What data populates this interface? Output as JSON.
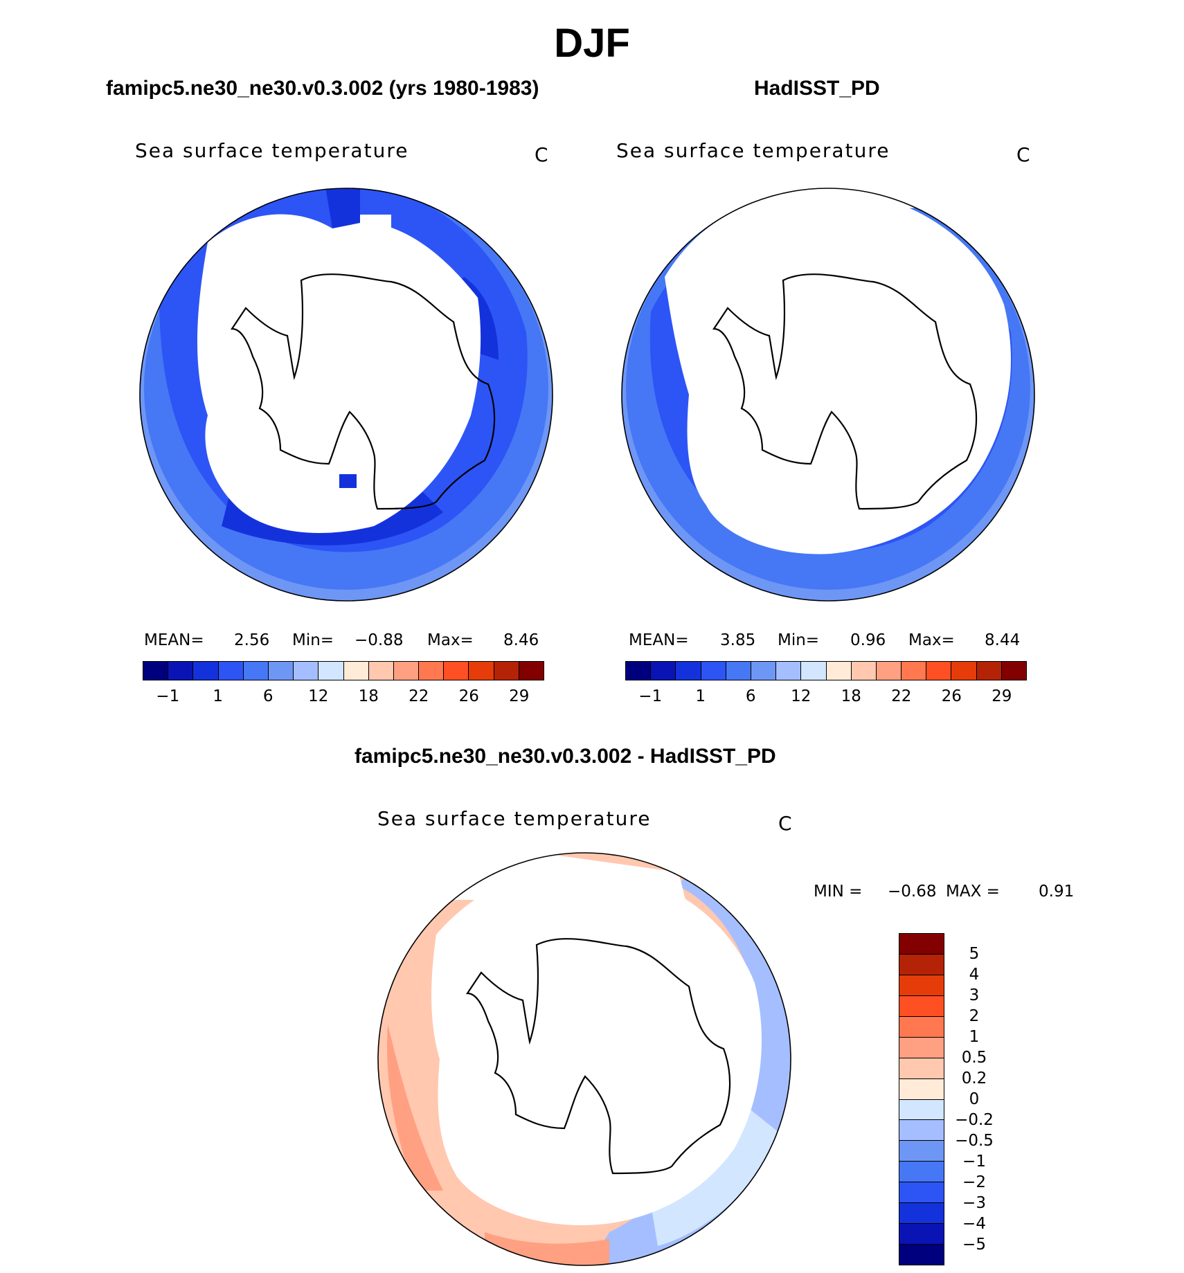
{
  "title": "DJF",
  "panels": [
    {
      "title": "famipc5.ne30_ne30.v0.3.002 (yrs 1980-1983)",
      "variable": "Sea surface temperature",
      "units": "C",
      "stats": {
        "mean_label": "MEAN=",
        "mean": "2.56",
        "min_label": "Min=",
        "min": "−0.88",
        "max_label": "Max=",
        "max": "8.46"
      }
    },
    {
      "title": "HadISST_PD",
      "variable": "Sea surface temperature",
      "units": "C",
      "stats": {
        "mean_label": "MEAN=",
        "mean": "3.85",
        "min_label": "Min=",
        "min": "0.96",
        "max_label": "Max=",
        "max": "8.44"
      }
    },
    {
      "title": "famipc5.ne30_ne30.v0.3.002 - HadISST_PD",
      "variable": "Sea surface temperature",
      "units": "C",
      "stats": {
        "min_label": "MIN =",
        "min": "−0.68",
        "max_label": "MAX =",
        "max": "0.91"
      }
    }
  ],
  "colorbar_abs": {
    "labels": [
      "−1",
      "1",
      "6",
      "12",
      "18",
      "22",
      "26",
      "29"
    ],
    "colors": [
      "#00007f",
      "#0a14b4",
      "#1432dc",
      "#2d55f5",
      "#4678f5",
      "#6e96f5",
      "#a5beff",
      "#d2e6ff",
      "#ffebd7",
      "#ffc8af",
      "#ffa082",
      "#ff7850",
      "#ff5023",
      "#e63c0a",
      "#b42305",
      "#820000"
    ]
  },
  "colorbar_diff": {
    "labels": [
      "5",
      "4",
      "3",
      "2",
      "1",
      "0.5",
      "0.2",
      "0",
      "−0.2",
      "−0.5",
      "−1",
      "−2",
      "−3",
      "−4",
      "−5"
    ],
    "colors": [
      "#820000",
      "#b42305",
      "#e63c0a",
      "#ff5023",
      "#ff7850",
      "#ffa082",
      "#ffc8af",
      "#ffebd7",
      "#d2e6ff",
      "#a5beff",
      "#6e96f5",
      "#4678f5",
      "#2d55f5",
      "#1432dc",
      "#0a14b4",
      "#00007f"
    ]
  }
}
